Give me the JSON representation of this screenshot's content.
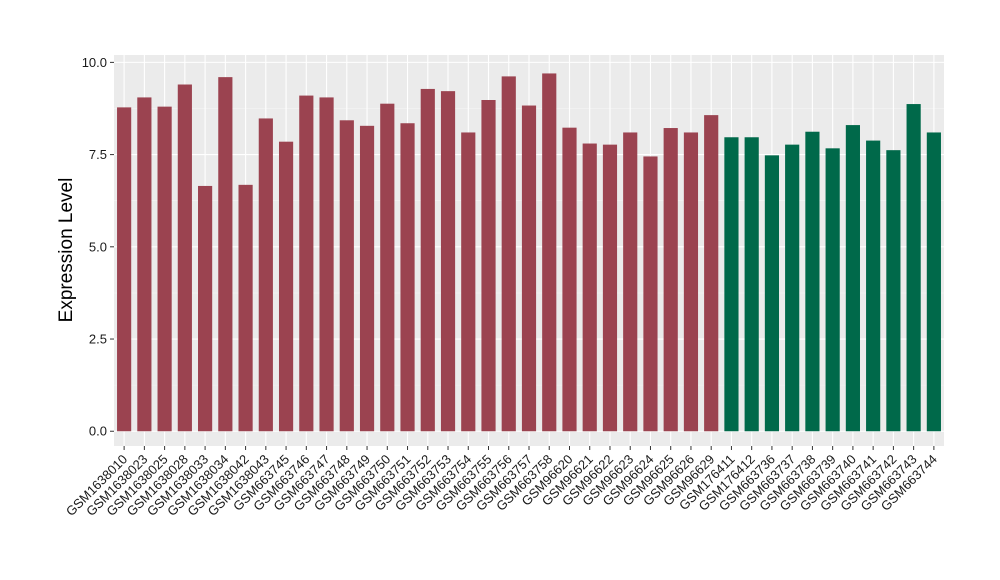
{
  "chart_data": {
    "type": "bar",
    "title": "",
    "xlabel": "",
    "ylabel": "Expression Level",
    "ylim": [
      -0.4,
      10.2
    ],
    "yticks": [
      0.0,
      2.5,
      5.0,
      7.5,
      10.0
    ],
    "ytick_labels": [
      "0.0",
      "2.5",
      "5.0",
      "7.5",
      "10.0"
    ],
    "grid": true,
    "legend": "none",
    "colors": {
      "group_a": "#9b4350",
      "group_b": "#00694a",
      "panel_bg": "#ebebeb",
      "grid_major": "#ffffff",
      "grid_minor": "#f5f5f5"
    },
    "categories": [
      "GSM1638010",
      "GSM1638023",
      "GSM1638025",
      "GSM1638028",
      "GSM1638033",
      "GSM1638034",
      "GSM1638042",
      "GSM1638043",
      "GSM663745",
      "GSM663746",
      "GSM663747",
      "GSM663748",
      "GSM663749",
      "GSM663750",
      "GSM663751",
      "GSM663752",
      "GSM663753",
      "GSM663754",
      "GSM663755",
      "GSM663756",
      "GSM663757",
      "GSM663758",
      "GSM96620",
      "GSM96621",
      "GSM96622",
      "GSM96623",
      "GSM96624",
      "GSM96625",
      "GSM96626",
      "GSM96629",
      "GSM176411",
      "GSM176412",
      "GSM663736",
      "GSM663737",
      "GSM663738",
      "GSM663739",
      "GSM663740",
      "GSM663741",
      "GSM663742",
      "GSM663743",
      "GSM663744"
    ],
    "values": [
      8.78,
      9.05,
      8.8,
      9.4,
      6.65,
      9.6,
      6.68,
      8.48,
      7.85,
      9.1,
      9.05,
      8.43,
      8.28,
      8.88,
      8.35,
      9.28,
      9.22,
      8.1,
      8.98,
      9.62,
      8.83,
      9.7,
      8.23,
      7.8,
      7.77,
      8.1,
      7.45,
      8.22,
      8.1,
      8.57,
      7.97,
      7.97,
      7.48,
      7.77,
      8.12,
      7.67,
      8.3,
      7.88,
      7.62,
      8.87,
      8.1
    ],
    "groups": [
      "a",
      "a",
      "a",
      "a",
      "a",
      "a",
      "a",
      "a",
      "a",
      "a",
      "a",
      "a",
      "a",
      "a",
      "a",
      "a",
      "a",
      "a",
      "a",
      "a",
      "a",
      "a",
      "a",
      "a",
      "a",
      "a",
      "a",
      "a",
      "a",
      "a",
      "b",
      "b",
      "b",
      "b",
      "b",
      "b",
      "b",
      "b",
      "b",
      "b",
      "b"
    ]
  }
}
